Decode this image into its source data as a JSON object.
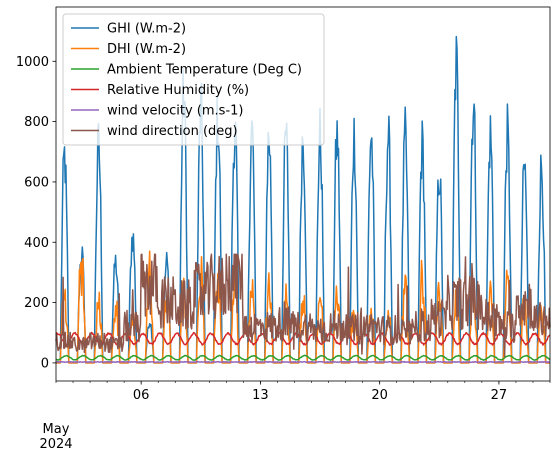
{
  "chart_data": {
    "type": "line",
    "title": "",
    "xlabel": "",
    "ylabel": "",
    "x_axis": {
      "start": "2024-05-01",
      "end": "2024-05-30",
      "major_ticks": [
        {
          "date": "2024-05-06",
          "label": "06"
        },
        {
          "date": "2024-05-13",
          "label": "13"
        },
        {
          "date": "2024-05-20",
          "label": "20"
        },
        {
          "date": "2024-05-27",
          "label": "27"
        }
      ],
      "minor_tick_interval": "1 day",
      "period_label_month": "May",
      "period_label_year": "2024"
    },
    "ylim": [
      -60,
      1180
    ],
    "yticks": [
      0,
      200,
      400,
      600,
      800,
      1000
    ],
    "legend_position": "upper-left",
    "grid": false,
    "series": [
      {
        "name": "GHI (W.m-2)",
        "color": "#1f77b4",
        "pattern": "daily solar cycle (0 at night)",
        "daily_peak": [
          780,
          420,
          820,
          380,
          480,
          160,
          380,
          1020,
          960,
          930,
          890,
          880,
          860,
          860,
          860,
          860,
          860,
          860,
          860,
          860,
          850,
          820,
          720,
          1130,
          980,
          860,
          860,
          740,
          740,
          160
        ]
      },
      {
        "name": "DHI (W.m-2)",
        "color": "#ff7f0e",
        "pattern": "daily solar cycle (0 at night)",
        "daily_peak": [
          300,
          480,
          300,
          260,
          200,
          380,
          300,
          360,
          440,
          380,
          360,
          360,
          310,
          280,
          300,
          280,
          300,
          260,
          240,
          240,
          360,
          400,
          330,
          290,
          340,
          360,
          340,
          260,
          260,
          220
        ]
      },
      {
        "name": "Ambient Temperature (Deg C)",
        "color": "#2ca02c",
        "pattern": "daily cycle between ~10 and ~25"
      },
      {
        "name": "Relative Humidity (%)",
        "color": "#d62728",
        "pattern": "daily cycle between ~55 and ~95"
      },
      {
        "name": "wind velocity (m.s-1)",
        "color": "#9467bd",
        "pattern": "near zero, 0 to ~5"
      },
      {
        "name": "wind direction (deg)",
        "color": "#8c564b",
        "pattern": "noisy, range ~20 to ~360",
        "daily_level": [
          70,
          60,
          70,
          60,
          120,
          260,
          200,
          190,
          230,
          250,
          290,
          120,
          120,
          130,
          120,
          110,
          120,
          110,
          120,
          110,
          100,
          120,
          150,
          200,
          200,
          150,
          120,
          200,
          140,
          150
        ]
      }
    ]
  }
}
